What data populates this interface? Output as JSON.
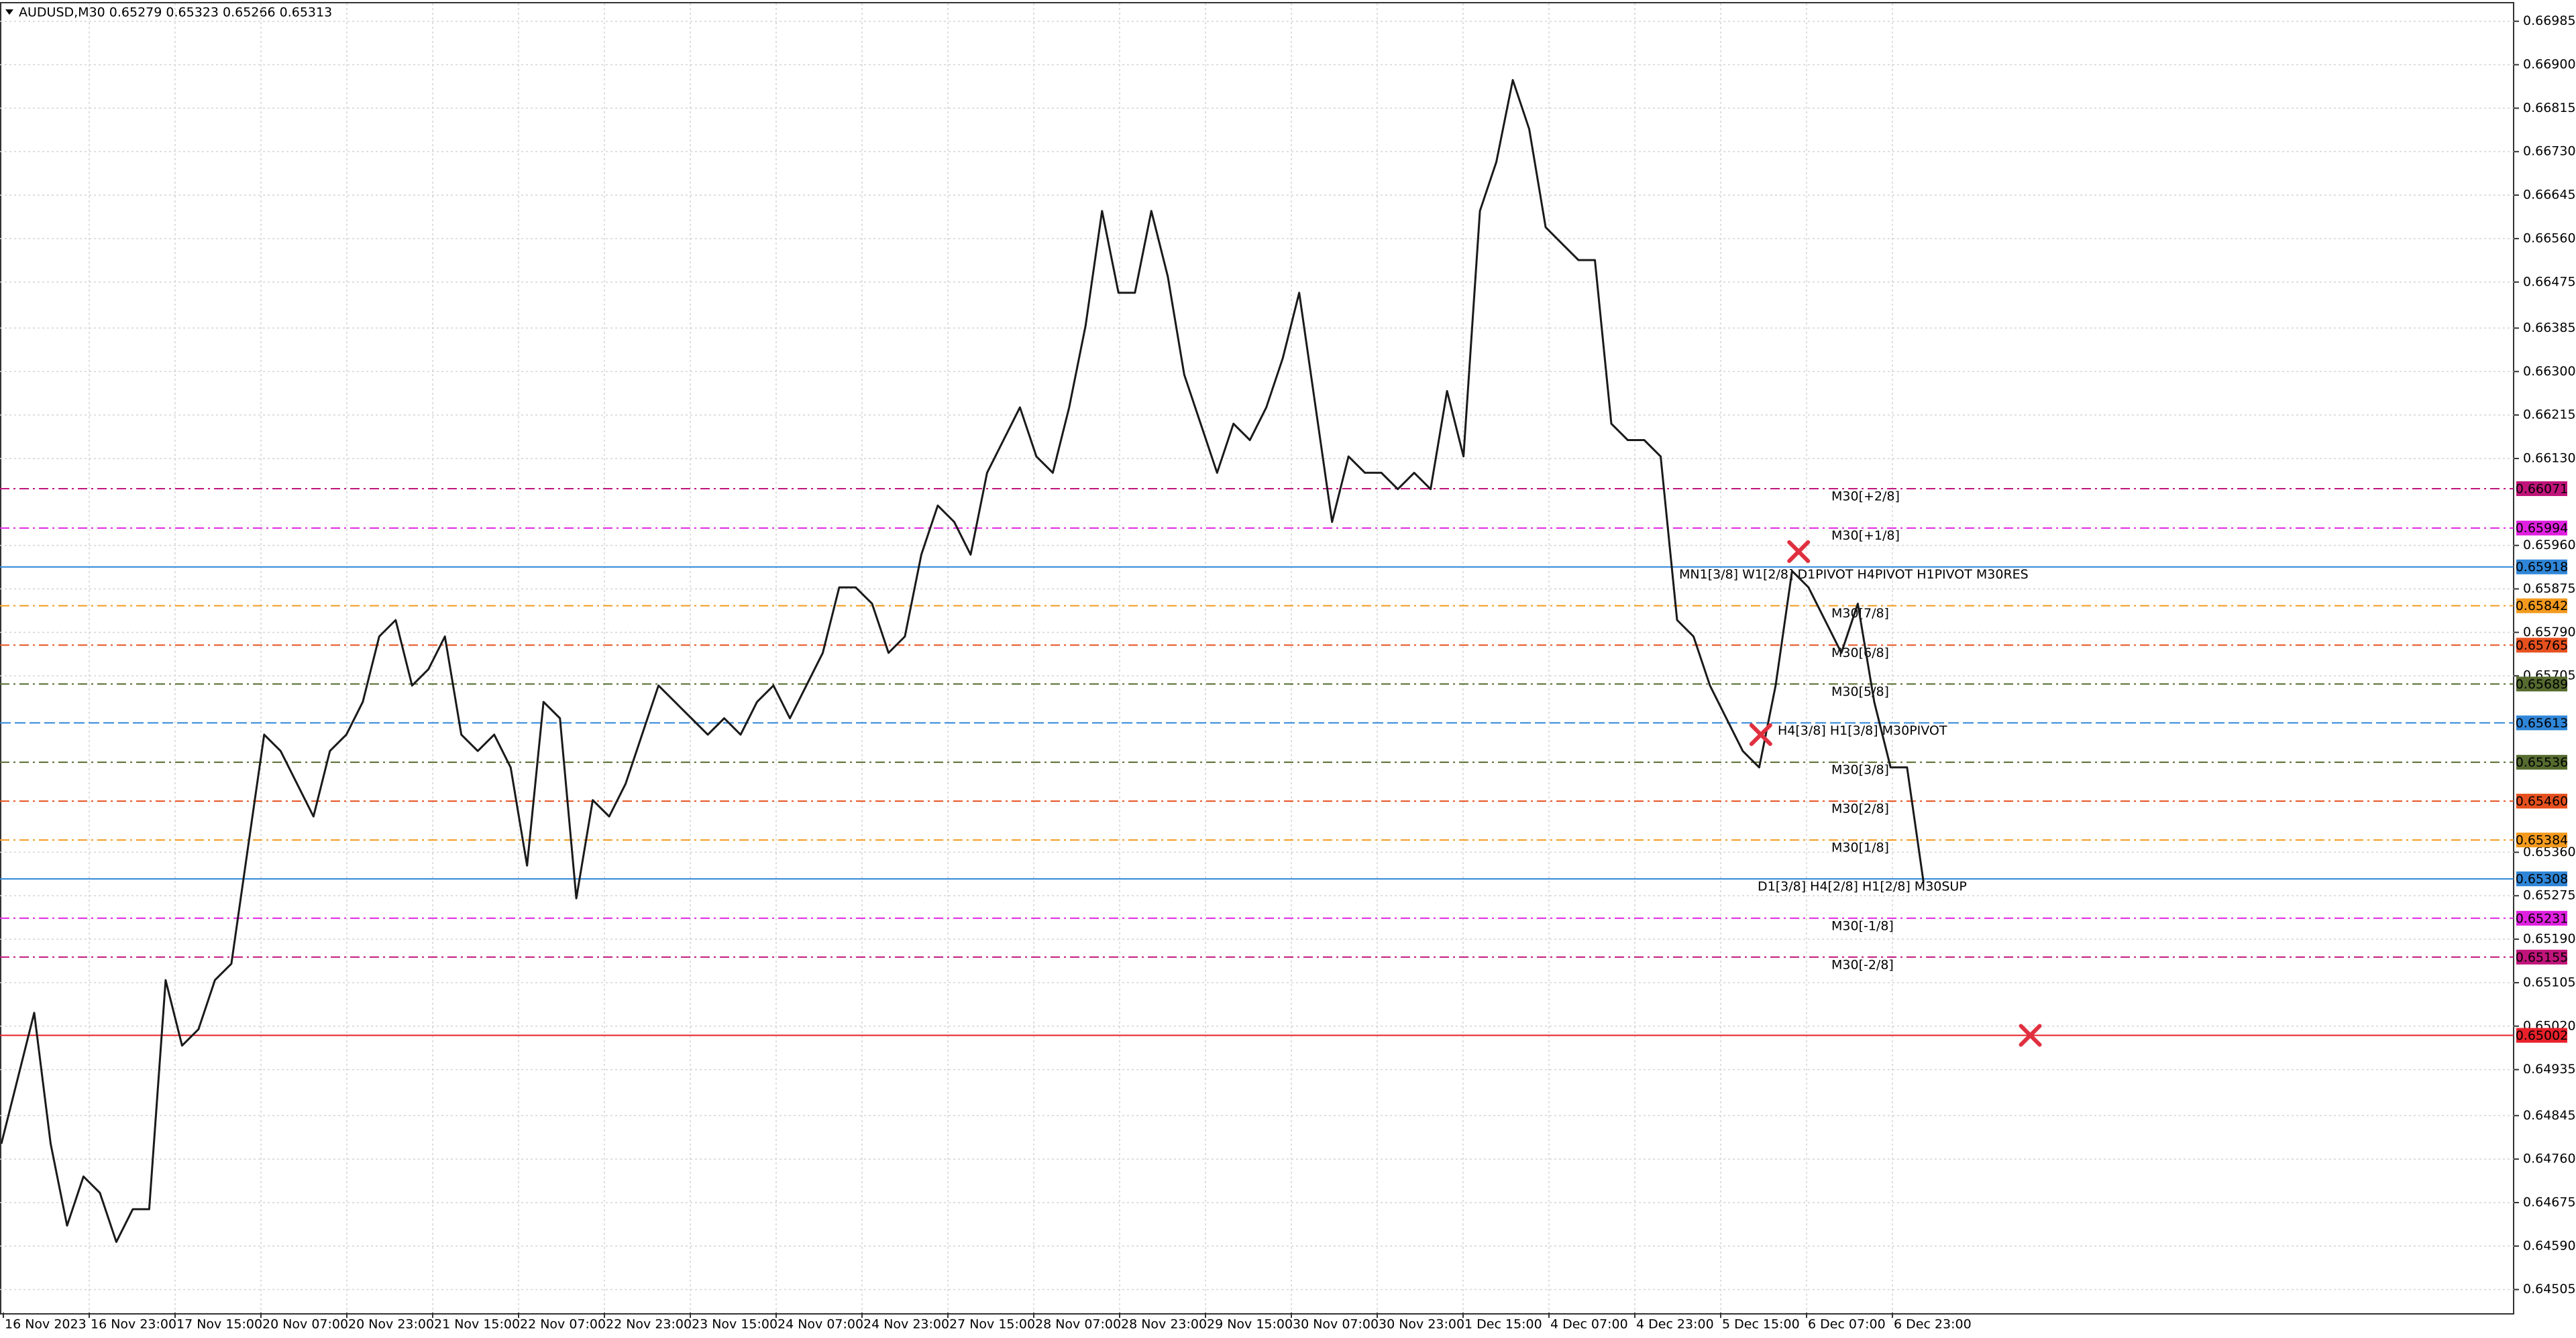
{
  "chart_data": {
    "type": "line",
    "title": "AUDUSD,M30  0.65279 0.65323 0.65266 0.65313",
    "x_labels": [
      "16 Nov 2023",
      "16 Nov 23:00",
      "17 Nov 15:00",
      "20 Nov 07:00",
      "20 Nov 23:00",
      "21 Nov 15:00",
      "22 Nov 07:00",
      "22 Nov 23:00",
      "23 Nov 15:00",
      "24 Nov 07:00",
      "24 Nov 23:00",
      "27 Nov 15:00",
      "28 Nov 07:00",
      "28 Nov 23:00",
      "29 Nov 15:00",
      "30 Nov 07:00",
      "30 Nov 23:00",
      "1 Dec 15:00",
      "4 Dec 07:00",
      "4 Dec 23:00",
      "5 Dec 15:00",
      "6 Dec 07:00",
      "6 Dec 23:00"
    ],
    "series": [
      {
        "color": "#1a1a1a",
        "values": [
          0.6479,
          0.64918,
          0.65046,
          0.6479,
          0.6463,
          0.64726,
          0.64694,
          0.64598,
          0.64662,
          0.64662,
          0.6511,
          0.64982,
          0.65014,
          0.6511,
          0.65142,
          0.65366,
          0.6559,
          0.65558,
          0.65494,
          0.6543,
          0.65558,
          0.6559,
          0.65654,
          0.65782,
          0.65814,
          0.65686,
          0.65718,
          0.65782,
          0.6559,
          0.65558,
          0.6559,
          0.65526,
          0.65334,
          0.65654,
          0.65622,
          0.6527,
          0.65462,
          0.6543,
          0.65494,
          0.6559,
          0.65686,
          0.65654,
          0.65622,
          0.6559,
          0.65622,
          0.6559,
          0.65654,
          0.65686,
          0.65622,
          0.65686,
          0.6575,
          0.65878,
          0.65878,
          0.65846,
          0.6575,
          0.65782,
          0.65942,
          0.66038,
          0.66006,
          0.65942,
          0.66102,
          0.66166,
          0.6623,
          0.66134,
          0.66102,
          0.6623,
          0.6639,
          0.66614,
          0.66454,
          0.66454,
          0.66614,
          0.66486,
          0.66294,
          0.66198,
          0.66102,
          0.66198,
          0.66166,
          0.6623,
          0.66326,
          0.66454,
          0.6623,
          0.66006,
          0.66134,
          0.66102,
          0.66102,
          0.6607,
          0.66102,
          0.6607,
          0.66262,
          0.66134,
          0.66614,
          0.6671,
          0.6687,
          0.66774,
          0.66582,
          0.6655,
          0.66518,
          0.66518,
          0.66198,
          0.66166,
          0.66166,
          0.66134,
          0.65814,
          0.65782,
          0.65686,
          0.65622,
          0.65558,
          0.65526,
          0.65686,
          0.6591,
          0.65878,
          0.65814,
          0.6575,
          0.65846,
          0.65654,
          0.65526,
          0.65526,
          0.65302
        ]
      }
    ],
    "ylim": [
      0.6446,
      0.6702
    ],
    "yticks": [
      0.66985,
      {
        "value": 0.669,
        "label": "0.66900"
      },
      0.66815,
      {
        "value": 0.6673,
        "label": "0.66730"
      },
      0.66645,
      {
        "value": 0.6656,
        "label": "0.66560"
      },
      0.66475,
      0.66385,
      {
        "value": 0.663,
        "label": "0.66300"
      },
      0.66215,
      {
        "value": 0.6613,
        "label": "0.66130"
      },
      {
        "value": 0.6596,
        "label": "0.65960"
      },
      0.65875,
      {
        "value": 0.6579,
        "label": "0.65790"
      },
      0.65705,
      {
        "value": 0.6536,
        "label": "0.65360"
      },
      0.65275,
      {
        "value": 0.6519,
        "label": "0.65190"
      },
      0.65105,
      {
        "value": 0.6502,
        "label": "0.65020"
      },
      0.64935,
      0.64845,
      {
        "value": 0.6476,
        "label": "0.64760"
      },
      0.64675,
      {
        "value": 0.6459,
        "label": "0.64590"
      },
      0.64505
    ],
    "grid": true,
    "levels": [
      {
        "label": "M30[+2/8]",
        "price": 0.66071,
        "color": "#c0147a"
      },
      {
        "label": "M30[+1/8]",
        "price": 0.65994,
        "color": "#e020e0"
      },
      {
        "label": "MN1[3/8] W1[2/8] D1PIVOT H4PIVOT H1PIVOT M30RES",
        "price": 0.65918,
        "color": "#2f86d8"
      },
      {
        "label": "M30[7/8]",
        "price": 0.65842,
        "color": "#f39a1e"
      },
      {
        "label": "M30[6/8]",
        "price": 0.65765,
        "color": "#e6501e"
      },
      {
        "label": "M30[5/8]",
        "price": 0.65689,
        "color": "#556b2f"
      },
      {
        "label": "H4[3/8] H1[3/8] M30PIVOT",
        "price": 0.65613,
        "color": "#2f86d8"
      },
      {
        "label": "M30[3/8]",
        "price": 0.65536,
        "color": "#556b2f"
      },
      {
        "label": "M30[2/8]",
        "price": 0.6546,
        "price_label": "0.65460",
        "color": "#e6501e"
      },
      {
        "label": "M30[1/8]",
        "price": 0.65384,
        "color": "#f39a1e"
      },
      {
        "label": "D1[3/8] H4[2/8] H1[2/8] M30SUP",
        "price": 0.65308,
        "color": "#2f86d8"
      },
      {
        "label": "M30[-1/8]",
        "price": 0.65231,
        "color": "#e020e0"
      },
      {
        "label": "M30[-2/8]",
        "price": 0.65155,
        "color": "#c0147a"
      },
      {
        "price": 0.65002,
        "color": "#e8202a"
      }
    ],
    "markers": [
      {
        "index": 109.4,
        "price": 0.65948,
        "color": "#e03040"
      },
      {
        "index": 107.1,
        "price": 0.6559,
        "color": "#e03040"
      },
      {
        "index": 123.5,
        "price": 0.65002,
        "color": "#e03040"
      }
    ]
  }
}
